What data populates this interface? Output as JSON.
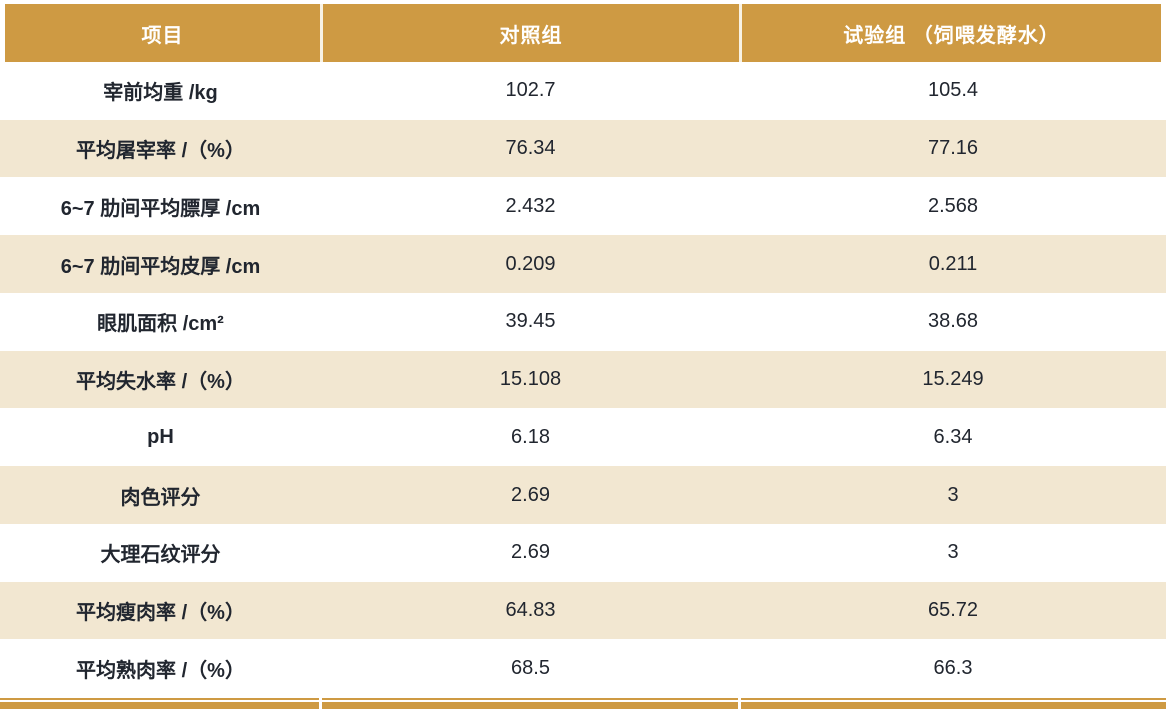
{
  "table": {
    "columns": [
      "项目",
      "对照组",
      "试验组 （饲喂发酵水）"
    ],
    "rows": [
      {
        "label": "宰前均重 /kg",
        "control": "102.7",
        "test": "105.4"
      },
      {
        "label": "平均屠宰率 /（%）",
        "control": "76.34",
        "test": "77.16"
      },
      {
        "label": "6~7 肋间平均膘厚 /cm",
        "control": "2.432",
        "test": "2.568"
      },
      {
        "label": "6~7 肋间平均皮厚 /cm",
        "control": "0.209",
        "test": "0.211"
      },
      {
        "label": "眼肌面积 /cm²",
        "control": "39.45",
        "test": "38.68"
      },
      {
        "label": "平均失水率 /（%）",
        "control": "15.108",
        "test": "15.249"
      },
      {
        "label": "pH",
        "control": "6.18",
        "test": "6.34"
      },
      {
        "label": "肉色评分",
        "control": "2.69",
        "test": "3"
      },
      {
        "label": "大理石纹评分",
        "control": "2.69",
        "test": "3"
      },
      {
        "label": "平均瘦肉率 /（%）",
        "control": "64.83",
        "test": "65.72"
      },
      {
        "label": "平均熟肉率 /（%）",
        "control": "68.5",
        "test": "66.3"
      }
    ]
  },
  "colors": {
    "header_bg": "#CE9A43",
    "header_text": "#FFFFFF",
    "row_alt_bg": "#F2E7D1",
    "row_bg": "#FFFFFF",
    "body_text": "#21262F",
    "bottom_rule": "#CE9A43"
  }
}
